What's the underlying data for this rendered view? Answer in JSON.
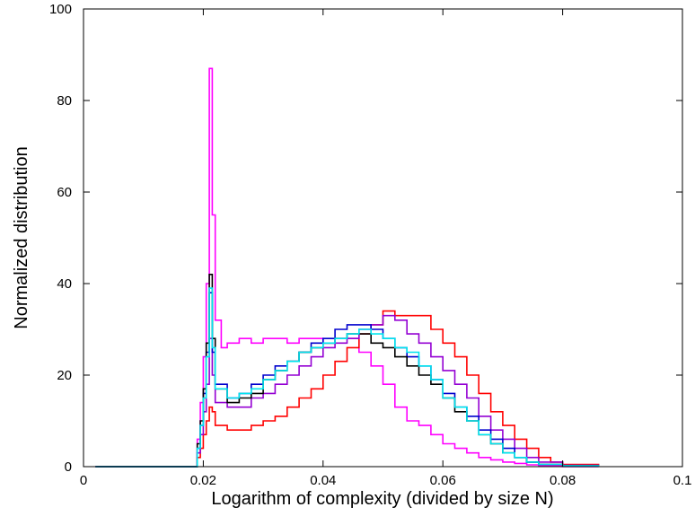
{
  "chart_data": {
    "type": "line",
    "title": "",
    "xlabel": "Logarithm of complexity (divided by size N)",
    "ylabel": "Normalized distribution",
    "xlim": [
      0,
      0.1
    ],
    "ylim": [
      0,
      100
    ],
    "x_ticks": [
      0,
      0.02,
      0.04,
      0.06,
      0.08,
      0.1
    ],
    "x_tick_labels": [
      "0",
      "0.02",
      "0.04",
      "0.06",
      "0.08",
      "0.1"
    ],
    "y_ticks": [
      0,
      20,
      40,
      60,
      80,
      100
    ],
    "y_tick_labels": [
      "0",
      "20",
      "40",
      "60",
      "80",
      "100"
    ],
    "grid": false,
    "legend": "none",
    "series": [
      {
        "color": "#ff00ff",
        "x": [
          0.002,
          0.018,
          0.019,
          0.0195,
          0.02,
          0.0205,
          0.021,
          0.0215,
          0.022,
          0.023,
          0.024,
          0.026,
          0.028,
          0.03,
          0.032,
          0.034,
          0.036,
          0.038,
          0.04,
          0.042,
          0.044,
          0.046,
          0.048,
          0.05,
          0.052,
          0.054,
          0.056,
          0.058,
          0.06,
          0.062,
          0.064,
          0.066,
          0.068,
          0.07,
          0.072,
          0.074,
          0.076,
          0.08,
          0.086
        ],
        "y": [
          0,
          0,
          6,
          14,
          24,
          40,
          87,
          55,
          32,
          26,
          27,
          28,
          27,
          28,
          28,
          27,
          28,
          28,
          27,
          28,
          28,
          25,
          22,
          18,
          13,
          10,
          9,
          7,
          5,
          4,
          3,
          2,
          1.5,
          1,
          0.7,
          0.4,
          0.2,
          0,
          0
        ]
      },
      {
        "color": "#ff0000",
        "x": [
          0.002,
          0.018,
          0.019,
          0.0195,
          0.02,
          0.0205,
          0.021,
          0.0215,
          0.022,
          0.024,
          0.026,
          0.028,
          0.03,
          0.032,
          0.034,
          0.036,
          0.038,
          0.04,
          0.042,
          0.044,
          0.046,
          0.048,
          0.05,
          0.052,
          0.054,
          0.056,
          0.058,
          0.06,
          0.062,
          0.064,
          0.066,
          0.068,
          0.07,
          0.072,
          0.074,
          0.076,
          0.078,
          0.08,
          0.086
        ],
        "y": [
          0,
          0,
          2,
          4,
          7,
          10,
          13,
          12,
          9,
          8,
          8,
          9,
          10,
          11,
          13,
          15,
          17,
          20,
          23,
          26,
          29,
          31,
          34,
          33,
          33,
          33,
          30,
          27,
          24,
          20,
          16,
          12,
          9,
          6,
          4,
          2,
          1,
          0.5,
          0
        ]
      },
      {
        "color": "#9400d3",
        "x": [
          0.002,
          0.018,
          0.019,
          0.0195,
          0.02,
          0.0205,
          0.021,
          0.0215,
          0.022,
          0.024,
          0.026,
          0.028,
          0.03,
          0.032,
          0.034,
          0.036,
          0.038,
          0.04,
          0.042,
          0.044,
          0.046,
          0.048,
          0.05,
          0.052,
          0.054,
          0.056,
          0.058,
          0.06,
          0.062,
          0.064,
          0.066,
          0.068,
          0.07,
          0.072,
          0.074,
          0.076,
          0.08,
          0.086
        ],
        "y": [
          0,
          0,
          3,
          7,
          12,
          18,
          28,
          20,
          14,
          13,
          13,
          15,
          16,
          18,
          20,
          22,
          24,
          26,
          27,
          28,
          30,
          31,
          33,
          32,
          29,
          27,
          24,
          21,
          18,
          15,
          11,
          8,
          6,
          4,
          2,
          1,
          0.3,
          0
        ]
      },
      {
        "color": "#0000cd",
        "x": [
          0.002,
          0.018,
          0.019,
          0.0195,
          0.02,
          0.0205,
          0.021,
          0.0215,
          0.022,
          0.024,
          0.026,
          0.028,
          0.03,
          0.032,
          0.034,
          0.036,
          0.038,
          0.04,
          0.042,
          0.044,
          0.046,
          0.048,
          0.05,
          0.052,
          0.054,
          0.056,
          0.058,
          0.06,
          0.062,
          0.064,
          0.066,
          0.068,
          0.07,
          0.072,
          0.074,
          0.076,
          0.08,
          0.086
        ],
        "y": [
          0,
          0,
          4,
          9,
          16,
          25,
          38,
          25,
          18,
          15,
          16,
          18,
          20,
          22,
          23,
          25,
          27,
          28,
          30,
          31,
          31,
          30,
          28,
          26,
          24,
          22,
          19,
          16,
          13,
          11,
          8,
          6,
          4,
          2,
          1,
          0.5,
          0.2,
          0
        ]
      },
      {
        "color": "#000000",
        "x": [
          0.002,
          0.018,
          0.019,
          0.0195,
          0.02,
          0.0205,
          0.021,
          0.0215,
          0.022,
          0.024,
          0.026,
          0.028,
          0.03,
          0.032,
          0.034,
          0.036,
          0.038,
          0.04,
          0.042,
          0.044,
          0.046,
          0.048,
          0.05,
          0.052,
          0.054,
          0.056,
          0.058,
          0.06,
          0.062,
          0.064,
          0.066,
          0.068,
          0.07,
          0.072,
          0.074,
          0.076,
          0.08,
          0.086
        ],
        "y": [
          0,
          0,
          5,
          10,
          17,
          27,
          42,
          28,
          17,
          14,
          15,
          16,
          19,
          21,
          23,
          25,
          26,
          27,
          28,
          29,
          29,
          27,
          26,
          24,
          22,
          20,
          18,
          15,
          12,
          10,
          7,
          5,
          3,
          2,
          1,
          0.5,
          0.2,
          0
        ]
      },
      {
        "color": "#00e5ee",
        "x": [
          0.002,
          0.018,
          0.019,
          0.0195,
          0.02,
          0.0205,
          0.021,
          0.0215,
          0.022,
          0.024,
          0.026,
          0.028,
          0.03,
          0.032,
          0.034,
          0.036,
          0.038,
          0.04,
          0.042,
          0.044,
          0.046,
          0.048,
          0.05,
          0.052,
          0.054,
          0.056,
          0.058,
          0.06,
          0.062,
          0.064,
          0.066,
          0.068,
          0.07,
          0.072,
          0.074,
          0.076,
          0.08,
          0.086
        ],
        "y": [
          0,
          0,
          4,
          9,
          15,
          24,
          39,
          26,
          17,
          15,
          16,
          17,
          19,
          21,
          23,
          25,
          26,
          27,
          28,
          29,
          30,
          29,
          28,
          26,
          25,
          22,
          19,
          15,
          13,
          10,
          7,
          5,
          3,
          2,
          1,
          0.5,
          0.2,
          0
        ]
      }
    ]
  }
}
